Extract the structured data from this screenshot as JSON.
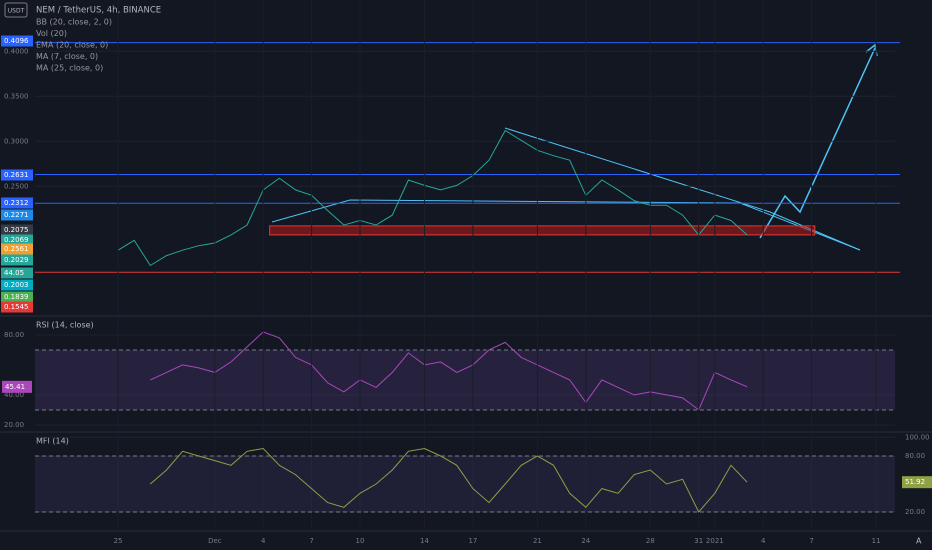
{
  "chart_data": [
    {
      "type": "line",
      "title": "NEM / TetherUS, 4h, BINANCE",
      "indicators": [
        "BB (20, close, 2, 0)",
        "Vol (20)",
        "EMA (20, close, 0)",
        "MA (7, close, 0)",
        "MA (25, close, 0)"
      ],
      "x": [
        0,
        1,
        2,
        3,
        4,
        5,
        6,
        7,
        8,
        9,
        10,
        11,
        12,
        13,
        14,
        15,
        16,
        17,
        18,
        19,
        20,
        21,
        22,
        23,
        24,
        25,
        26,
        27,
        28,
        29,
        30,
        31,
        32,
        33,
        34,
        35,
        36,
        37,
        38,
        39
      ],
      "values": [
        0.179,
        0.19,
        0.162,
        0.173,
        0.179,
        0.184,
        0.187,
        0.196,
        0.207,
        0.246,
        0.259,
        0.246,
        0.24,
        0.223,
        0.207,
        0.212,
        0.207,
        0.218,
        0.257,
        0.251,
        0.246,
        0.251,
        0.262,
        0.279,
        0.312,
        0.301,
        0.29,
        0.284,
        0.279,
        0.24,
        0.257,
        0.246,
        0.234,
        0.229,
        0.229,
        0.218,
        0.196,
        0.218,
        0.212,
        0.196
      ],
      "color": "#26a69a",
      "xlim": [
        -5.15,
        48.17
      ],
      "ylim": [
        0.107,
        0.457
      ],
      "yticks": [
        {
          "value": 0.4,
          "label": "0.4000"
        },
        {
          "value": 0.35,
          "label": "0.3500"
        },
        {
          "value": 0.3,
          "label": "0.3000"
        },
        {
          "value": 0.25,
          "label": "0.2500"
        }
      ],
      "levels": [
        {
          "value": 0.4096,
          "color": "#2962ff"
        },
        {
          "value": 0.2631,
          "color": "#2962ff"
        },
        {
          "value": 0.2312,
          "color": "#2962ff"
        },
        {
          "value": 0.1545,
          "color": "#e53935"
        }
      ],
      "zone": [
        0.196,
        0.206
      ],
      "price_tags": [
        {
          "label": "0.4096",
          "color": "#2962ff"
        },
        {
          "label": "0.2631",
          "color": "#2962ff"
        },
        {
          "label": "0.2312",
          "color": "#2962ff"
        },
        {
          "label": "0.2271",
          "color": "#1e88e5"
        },
        {
          "label": "0.2075",
          "color": "#363a45"
        },
        {
          "label": "0.2069",
          "color": "#26a69a"
        },
        {
          "label": "0.2561",
          "color": "#f0a030"
        },
        {
          "label": "0.2029",
          "color": "#26a69a"
        },
        {
          "label": "44.05",
          "color": "#26a69a"
        },
        {
          "label": "0.2003",
          "color": "#00acc1"
        },
        {
          "label": "0.1839",
          "color": "#4caf50"
        },
        {
          "label": "0.1545",
          "color": "#e53935"
        }
      ],
      "currency": "USDT"
    },
    {
      "type": "line",
      "title": "RSI (14, close)",
      "x": [
        2,
        3,
        4,
        5,
        6,
        7,
        8,
        9,
        10,
        11,
        12,
        13,
        14,
        15,
        16,
        17,
        18,
        19,
        20,
        21,
        22,
        23,
        24,
        25,
        26,
        27,
        28,
        29,
        30,
        31,
        32,
        33,
        34,
        35,
        36,
        37,
        38,
        39
      ],
      "values": [
        50,
        55,
        60,
        58,
        55,
        62,
        72,
        82,
        78,
        65,
        60,
        48,
        42,
        50,
        45,
        55,
        68,
        60,
        62,
        55,
        60,
        70,
        75,
        65,
        60,
        55,
        50,
        35,
        50,
        45,
        40,
        42,
        40,
        38,
        30,
        55,
        50,
        45.41
      ],
      "value_labels": {
        "37": "45.41"
      },
      "color": "#ab47bc",
      "band": [
        30,
        70
      ],
      "xlim": [
        -5.15,
        48.17
      ],
      "ylim": [
        15.3,
        91.3
      ],
      "yticks": [
        {
          "value": 80,
          "label": "80.00"
        },
        {
          "value": 40,
          "label": "40.00"
        },
        {
          "value": 20,
          "label": "20.00"
        }
      ]
    },
    {
      "type": "line",
      "title": "MFI (14)",
      "x": [
        2,
        3,
        4,
        5,
        6,
        7,
        8,
        9,
        10,
        11,
        12,
        13,
        14,
        15,
        16,
        17,
        18,
        19,
        20,
        21,
        22,
        23,
        24,
        25,
        26,
        27,
        28,
        29,
        30,
        31,
        32,
        33,
        34,
        35,
        36,
        37,
        38,
        39
      ],
      "values": [
        50,
        65,
        85,
        80,
        75,
        70,
        85,
        88,
        70,
        60,
        45,
        30,
        25,
        40,
        50,
        65,
        85,
        88,
        80,
        70,
        45,
        30,
        50,
        70,
        80,
        70,
        40,
        25,
        45,
        40,
        60,
        65,
        50,
        55,
        20,
        40,
        70,
        51.92
      ],
      "value_labels": {
        "37": "51.92"
      },
      "color": "#8fa045",
      "band": [
        20,
        80
      ],
      "xlim": [
        -5.15,
        48.17
      ],
      "ylim": [
        0.7,
        104.6
      ],
      "yticks": [
        {
          "value": 100,
          "label": "100.00"
        },
        {
          "value": 80,
          "label": "80.00"
        },
        {
          "value": 20,
          "label": "20.00"
        }
      ],
      "xticks": [
        {
          "value": 0,
          "label": "25"
        },
        {
          "value": 6,
          "label": "Dec"
        },
        {
          "value": 9,
          "label": "4"
        },
        {
          "value": 12,
          "label": "7"
        },
        {
          "value": 15,
          "label": "10"
        },
        {
          "value": 19,
          "label": "14"
        },
        {
          "value": 22,
          "label": "17"
        },
        {
          "value": 26,
          "label": "21"
        },
        {
          "value": 29,
          "label": "24"
        },
        {
          "value": 33,
          "label": "28"
        },
        {
          "value": 36,
          "label": "31"
        },
        {
          "value": 37,
          "label": "2021"
        },
        {
          "value": 40,
          "label": "4"
        },
        {
          "value": 43,
          "label": "7"
        },
        {
          "value": 47,
          "label": "11"
        }
      ]
    }
  ]
}
